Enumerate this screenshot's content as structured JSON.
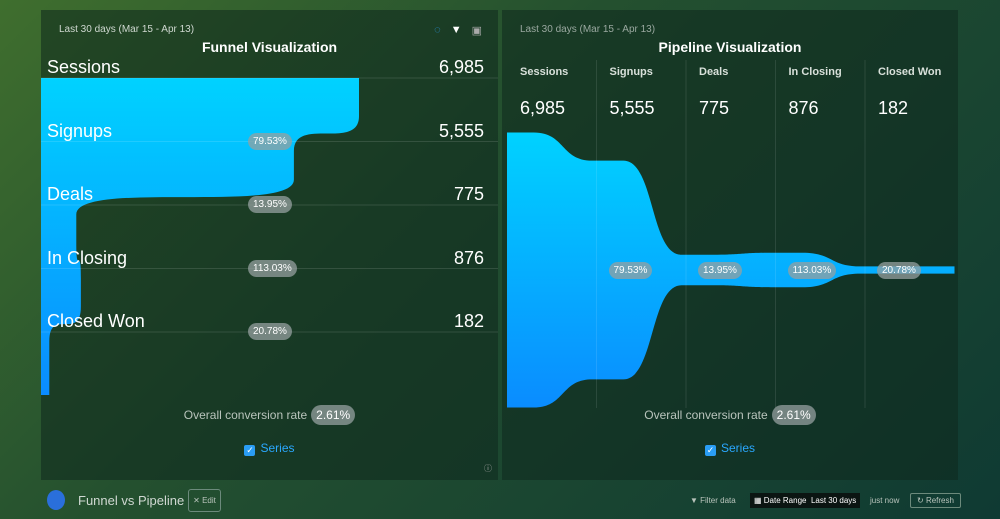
{
  "left": {
    "range": "Last 30 days (Mar 15 - Apr 13)",
    "title": "Funnel Visualization",
    "icons": [
      "refresh-circle-icon",
      "filter-icon",
      "chart-icon"
    ],
    "stages": [
      {
        "label": "Sessions",
        "value": "6,985",
        "n": 6985
      },
      {
        "label": "Signups",
        "value": "5,555",
        "n": 5555,
        "rate": "79.53%"
      },
      {
        "label": "Deals",
        "value": "775",
        "n": 775,
        "rate": "13.95%"
      },
      {
        "label": "In Closing",
        "value": "876",
        "n": 876,
        "rate": "113.03%"
      },
      {
        "label": "Closed Won",
        "value": "182",
        "n": 182,
        "rate": "20.78%"
      }
    ],
    "conv_label": "Overall conversion rate",
    "conv_value": "2.61%",
    "legend": "Series"
  },
  "right": {
    "range": "Last 30 days (Mar 15 - Apr 13)",
    "title": "Pipeline Visualization",
    "stages": [
      {
        "label": "Sessions",
        "value": "6,985",
        "n": 6985
      },
      {
        "label": "Signups",
        "value": "5,555",
        "n": 5555
      },
      {
        "label": "Deals",
        "value": "775",
        "n": 775
      },
      {
        "label": "In Closing",
        "value": "876",
        "n": 876
      },
      {
        "label": "Closed Won",
        "value": "182",
        "n": 182
      }
    ],
    "rates": [
      "79.53%",
      "13.95%",
      "113.03%",
      "20.78%"
    ],
    "conv_label": "Overall conversion rate",
    "conv_value": "2.61%",
    "legend": "Series"
  },
  "footer": {
    "title": "Funnel vs Pipeline",
    "edit": "Edit",
    "filter": "Filter data",
    "date_range_label": "Date Range",
    "date_range_value": "Last 30 days",
    "updated": "just now",
    "refresh": "Refresh"
  },
  "colors": {
    "funnel_top": "#00d2ff",
    "funnel_bottom": "#0a8cff"
  }
}
